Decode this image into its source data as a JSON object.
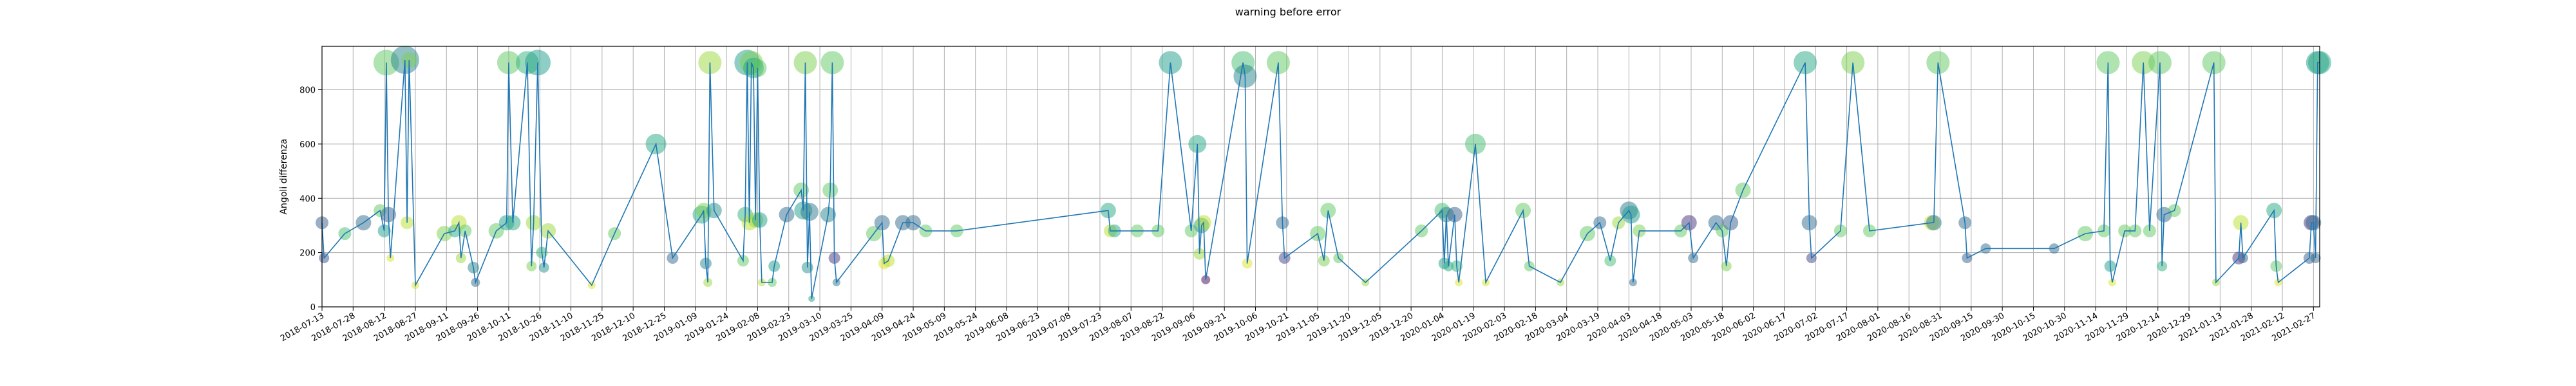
{
  "chart_data": {
    "type": "scatter",
    "title": "warning before error",
    "xlabel": "",
    "ylabel": "Angoli differenza",
    "ylim": [
      0,
      960
    ],
    "yticks": [
      0,
      200,
      400,
      600,
      800
    ],
    "xlim": [
      "2018-07-13",
      "2021-03-02"
    ],
    "xticks": [
      "2018-07-13",
      "2018-07-28",
      "2018-08-12",
      "2018-08-27",
      "2018-09-11",
      "2018-09-26",
      "2018-10-11",
      "2018-10-26",
      "2018-11-10",
      "2018-11-25",
      "2018-12-10",
      "2018-12-25",
      "2019-01-09",
      "2019-01-24",
      "2019-02-08",
      "2019-02-23",
      "2019-03-10",
      "2019-03-25",
      "2019-04-09",
      "2019-04-24",
      "2019-05-09",
      "2019-05-24",
      "2019-06-08",
      "2019-06-23",
      "2019-07-08",
      "2019-07-23",
      "2019-08-07",
      "2019-08-22",
      "2019-09-06",
      "2019-09-21",
      "2019-10-06",
      "2019-10-21",
      "2019-11-05",
      "2019-11-20",
      "2019-12-05",
      "2019-12-20",
      "2020-01-04",
      "2020-01-19",
      "2020-02-03",
      "2020-02-18",
      "2020-03-04",
      "2020-03-19",
      "2020-04-03",
      "2020-04-18",
      "2020-05-03",
      "2020-05-18",
      "2020-06-02",
      "2020-06-17",
      "2020-07-02",
      "2020-07-17",
      "2020-08-01",
      "2020-08-16",
      "2020-08-31",
      "2020-09-15",
      "2020-09-30",
      "2020-10-15",
      "2020-10-30",
      "2020-11-14",
      "2020-11-29",
      "2020-12-14",
      "2020-12-29",
      "2021-01-13",
      "2021-01-28",
      "2021-02-12",
      "2021-02-27"
    ],
    "grid": true,
    "line_color": "#1f77b4",
    "colormap": "viridis",
    "points": [
      {
        "x": "2018-07-13",
        "y": 310,
        "size": 10,
        "c": 0.3
      },
      {
        "x": "2018-07-14",
        "y": 180,
        "size": 8,
        "c": 0.25
      },
      {
        "x": "2018-07-24",
        "y": 270,
        "size": 10,
        "c": 0.7
      },
      {
        "x": "2018-08-02",
        "y": 310,
        "size": 12,
        "c": 0.35
      },
      {
        "x": "2018-08-10",
        "y": 355,
        "size": 10,
        "c": 0.75
      },
      {
        "x": "2018-08-12",
        "y": 280,
        "size": 10,
        "c": 0.55
      },
      {
        "x": "2018-08-13",
        "y": 900,
        "size": 20,
        "c": 0.75
      },
      {
        "x": "2018-08-14",
        "y": 340,
        "size": 12,
        "c": 0.3
      },
      {
        "x": "2018-08-15",
        "y": 180,
        "size": 6,
        "c": 0.95
      },
      {
        "x": "2018-08-22",
        "y": 910,
        "size": 22,
        "c": 0.45
      },
      {
        "x": "2018-08-23",
        "y": 310,
        "size": 10,
        "c": 0.9
      },
      {
        "x": "2018-08-24",
        "y": 910,
        "size": 12,
        "c": 0.8
      },
      {
        "x": "2018-08-27",
        "y": 80,
        "size": 6,
        "c": 0.95
      },
      {
        "x": "2018-09-10",
        "y": 270,
        "size": 12,
        "c": 0.8
      },
      {
        "x": "2018-09-15",
        "y": 280,
        "size": 10,
        "c": 0.6
      },
      {
        "x": "2018-09-17",
        "y": 310,
        "size": 12,
        "c": 0.9
      },
      {
        "x": "2018-09-18",
        "y": 180,
        "size": 8,
        "c": 0.85
      },
      {
        "x": "2018-09-20",
        "y": 280,
        "size": 10,
        "c": 0.75
      },
      {
        "x": "2018-09-24",
        "y": 145,
        "size": 9,
        "c": 0.45
      },
      {
        "x": "2018-09-25",
        "y": 90,
        "size": 7,
        "c": 0.35
      },
      {
        "x": "2018-10-05",
        "y": 280,
        "size": 12,
        "c": 0.75
      },
      {
        "x": "2018-10-10",
        "y": 310,
        "size": 12,
        "c": 0.55
      },
      {
        "x": "2018-10-11",
        "y": 900,
        "size": 18,
        "c": 0.75
      },
      {
        "x": "2018-10-13",
        "y": 310,
        "size": 12,
        "c": 0.6
      },
      {
        "x": "2018-10-20",
        "y": 900,
        "size": 18,
        "c": 0.65
      },
      {
        "x": "2018-10-22",
        "y": 150,
        "size": 8,
        "c": 0.8
      },
      {
        "x": "2018-10-23",
        "y": 310,
        "size": 12,
        "c": 0.85
      },
      {
        "x": "2018-10-25",
        "y": 900,
        "size": 20,
        "c": 0.55
      },
      {
        "x": "2018-10-27",
        "y": 200,
        "size": 9,
        "c": 0.65
      },
      {
        "x": "2018-10-28",
        "y": 145,
        "size": 8,
        "c": 0.5
      },
      {
        "x": "2018-10-30",
        "y": 280,
        "size": 12,
        "c": 0.85
      },
      {
        "x": "2018-11-20",
        "y": 80,
        "size": 6,
        "c": 0.95
      },
      {
        "x": "2018-12-01",
        "y": 270,
        "size": 10,
        "c": 0.75
      },
      {
        "x": "2018-12-21",
        "y": 600,
        "size": 16,
        "c": 0.6
      },
      {
        "x": "2018-12-29",
        "y": 180,
        "size": 9,
        "c": 0.35
      },
      {
        "x": "2019-01-12",
        "y": 340,
        "size": 14,
        "c": 0.6
      },
      {
        "x": "2019-01-13",
        "y": 355,
        "size": 12,
        "c": 0.8
      },
      {
        "x": "2019-01-14",
        "y": 160,
        "size": 9,
        "c": 0.45
      },
      {
        "x": "2019-01-15",
        "y": 90,
        "size": 7,
        "c": 0.85
      },
      {
        "x": "2019-01-16",
        "y": 900,
        "size": 18,
        "c": 0.85
      },
      {
        "x": "2019-01-18",
        "y": 355,
        "size": 12,
        "c": 0.5
      },
      {
        "x": "2019-02-01",
        "y": 170,
        "size": 9,
        "c": 0.75
      },
      {
        "x": "2019-02-02",
        "y": 340,
        "size": 12,
        "c": 0.65
      },
      {
        "x": "2019-02-03",
        "y": 900,
        "size": 20,
        "c": 0.55
      },
      {
        "x": "2019-02-04",
        "y": 310,
        "size": 12,
        "c": 0.9
      },
      {
        "x": "2019-02-05",
        "y": 900,
        "size": 18,
        "c": 0.8
      },
      {
        "x": "2019-02-06",
        "y": 880,
        "size": 16,
        "c": 0.6
      },
      {
        "x": "2019-02-07",
        "y": 320,
        "size": 12,
        "c": 0.85
      },
      {
        "x": "2019-02-08",
        "y": 880,
        "size": 14,
        "c": 0.75
      },
      {
        "x": "2019-02-09",
        "y": 320,
        "size": 12,
        "c": 0.55
      },
      {
        "x": "2019-02-10",
        "y": 90,
        "size": 6,
        "c": 0.9
      },
      {
        "x": "2019-02-15",
        "y": 90,
        "size": 7,
        "c": 0.75
      },
      {
        "x": "2019-02-16",
        "y": 150,
        "size": 9,
        "c": 0.55
      },
      {
        "x": "2019-02-22",
        "y": 340,
        "size": 12,
        "c": 0.35
      },
      {
        "x": "2019-03-01",
        "y": 430,
        "size": 12,
        "c": 0.75
      },
      {
        "x": "2019-03-02",
        "y": 355,
        "size": 14,
        "c": 0.55
      },
      {
        "x": "2019-03-03",
        "y": 900,
        "size": 18,
        "c": 0.8
      },
      {
        "x": "2019-03-04",
        "y": 145,
        "size": 9,
        "c": 0.5
      },
      {
        "x": "2019-03-05",
        "y": 350,
        "size": 14,
        "c": 0.4
      },
      {
        "x": "2019-03-06",
        "y": 30,
        "size": 5,
        "c": 0.55
      },
      {
        "x": "2019-03-14",
        "y": 340,
        "size": 12,
        "c": 0.45
      },
      {
        "x": "2019-03-15",
        "y": 430,
        "size": 12,
        "c": 0.75
      },
      {
        "x": "2019-03-16",
        "y": 900,
        "size": 18,
        "c": 0.75
      },
      {
        "x": "2019-03-17",
        "y": 180,
        "size": 9,
        "c": 0.15
      },
      {
        "x": "2019-03-18",
        "y": 90,
        "size": 6,
        "c": 0.4
      },
      {
        "x": "2019-04-05",
        "y": 270,
        "size": 12,
        "c": 0.75
      },
      {
        "x": "2019-04-09",
        "y": 310,
        "size": 12,
        "c": 0.35
      },
      {
        "x": "2019-04-10",
        "y": 160,
        "size": 9,
        "c": 0.95
      },
      {
        "x": "2019-04-12",
        "y": 170,
        "size": 10,
        "c": 0.9
      },
      {
        "x": "2019-04-19",
        "y": 310,
        "size": 12,
        "c": 0.35
      },
      {
        "x": "2019-04-24",
        "y": 310,
        "size": 12,
        "c": 0.35
      },
      {
        "x": "2019-04-30",
        "y": 280,
        "size": 10,
        "c": 0.75
      },
      {
        "x": "2019-05-15",
        "y": 280,
        "size": 10,
        "c": 0.75
      },
      {
        "x": "2019-07-27",
        "y": 355,
        "size": 12,
        "c": 0.6
      },
      {
        "x": "2019-07-28",
        "y": 280,
        "size": 10,
        "c": 0.9
      },
      {
        "x": "2019-07-30",
        "y": 280,
        "size": 10,
        "c": 0.6
      },
      {
        "x": "2019-08-10",
        "y": 280,
        "size": 10,
        "c": 0.75
      },
      {
        "x": "2019-08-20",
        "y": 280,
        "size": 10,
        "c": 0.75
      },
      {
        "x": "2019-08-26",
        "y": 900,
        "size": 18,
        "c": 0.55
      },
      {
        "x": "2019-09-05",
        "y": 280,
        "size": 10,
        "c": 0.75
      },
      {
        "x": "2019-09-08",
        "y": 600,
        "size": 14,
        "c": 0.6
      },
      {
        "x": "2019-09-09",
        "y": 195,
        "size": 9,
        "c": 0.85
      },
      {
        "x": "2019-09-10",
        "y": 300,
        "size": 12,
        "c": 0.55
      },
      {
        "x": "2019-09-11",
        "y": 310,
        "size": 12,
        "c": 0.9
      },
      {
        "x": "2019-09-12",
        "y": 100,
        "size": 7,
        "c": 0.0
      },
      {
        "x": "2019-09-30",
        "y": 900,
        "size": 18,
        "c": 0.7
      },
      {
        "x": "2019-10-01",
        "y": 850,
        "size": 18,
        "c": 0.45
      },
      {
        "x": "2019-10-02",
        "y": 160,
        "size": 8,
        "c": 0.95
      },
      {
        "x": "2019-10-17",
        "y": 900,
        "size": 18,
        "c": 0.75
      },
      {
        "x": "2019-10-19",
        "y": 310,
        "size": 10,
        "c": 0.35
      },
      {
        "x": "2019-10-20",
        "y": 180,
        "size": 9,
        "c": 0.2
      },
      {
        "x": "2019-11-05",
        "y": 270,
        "size": 12,
        "c": 0.75
      },
      {
        "x": "2019-11-08",
        "y": 170,
        "size": 9,
        "c": 0.8
      },
      {
        "x": "2019-11-10",
        "y": 355,
        "size": 12,
        "c": 0.75
      },
      {
        "x": "2019-11-15",
        "y": 180,
        "size": 8,
        "c": 0.75
      },
      {
        "x": "2019-11-28",
        "y": 90,
        "size": 6,
        "c": 0.85
      },
      {
        "x": "2019-12-25",
        "y": 280,
        "size": 10,
        "c": 0.75
      },
      {
        "x": "2020-01-04",
        "y": 355,
        "size": 12,
        "c": 0.7
      },
      {
        "x": "2020-01-05",
        "y": 160,
        "size": 9,
        "c": 0.55
      },
      {
        "x": "2020-01-06",
        "y": 340,
        "size": 12,
        "c": 0.45
      },
      {
        "x": "2020-01-07",
        "y": 150,
        "size": 8,
        "c": 0.6
      },
      {
        "x": "2020-01-10",
        "y": 340,
        "size": 12,
        "c": 0.3
      },
      {
        "x": "2020-01-11",
        "y": 150,
        "size": 9,
        "c": 0.65
      },
      {
        "x": "2020-01-12",
        "y": 90,
        "size": 6,
        "c": 0.95
      },
      {
        "x": "2020-01-20",
        "y": 600,
        "size": 16,
        "c": 0.7
      },
      {
        "x": "2020-01-25",
        "y": 90,
        "size": 6,
        "c": 0.95
      },
      {
        "x": "2020-02-12",
        "y": 355,
        "size": 12,
        "c": 0.75
      },
      {
        "x": "2020-02-15",
        "y": 150,
        "size": 8,
        "c": 0.75
      },
      {
        "x": "2020-03-01",
        "y": 90,
        "size": 6,
        "c": 0.85
      },
      {
        "x": "2020-03-14",
        "y": 270,
        "size": 12,
        "c": 0.75
      },
      {
        "x": "2020-03-20",
        "y": 310,
        "size": 10,
        "c": 0.35
      },
      {
        "x": "2020-03-25",
        "y": 170,
        "size": 9,
        "c": 0.7
      },
      {
        "x": "2020-03-29",
        "y": 310,
        "size": 10,
        "c": 0.85
      },
      {
        "x": "2020-04-03",
        "y": 355,
        "size": 14,
        "c": 0.4
      },
      {
        "x": "2020-04-04",
        "y": 340,
        "size": 14,
        "c": 0.55
      },
      {
        "x": "2020-04-05",
        "y": 90,
        "size": 6,
        "c": 0.35
      },
      {
        "x": "2020-04-08",
        "y": 280,
        "size": 10,
        "c": 0.8
      },
      {
        "x": "2020-04-28",
        "y": 280,
        "size": 10,
        "c": 0.75
      },
      {
        "x": "2020-05-02",
        "y": 310,
        "size": 12,
        "c": 0.15
      },
      {
        "x": "2020-05-04",
        "y": 180,
        "size": 8,
        "c": 0.35
      },
      {
        "x": "2020-05-15",
        "y": 310,
        "size": 12,
        "c": 0.35
      },
      {
        "x": "2020-05-18",
        "y": 280,
        "size": 10,
        "c": 0.75
      },
      {
        "x": "2020-05-20",
        "y": 150,
        "size": 8,
        "c": 0.8
      },
      {
        "x": "2020-05-22",
        "y": 310,
        "size": 12,
        "c": 0.3
      },
      {
        "x": "2020-05-28",
        "y": 430,
        "size": 12,
        "c": 0.75
      },
      {
        "x": "2020-06-27",
        "y": 900,
        "size": 18,
        "c": 0.6
      },
      {
        "x": "2020-06-29",
        "y": 310,
        "size": 12,
        "c": 0.35
      },
      {
        "x": "2020-06-30",
        "y": 180,
        "size": 8,
        "c": 0.2
      },
      {
        "x": "2020-07-14",
        "y": 280,
        "size": 10,
        "c": 0.75
      },
      {
        "x": "2020-07-20",
        "y": 900,
        "size": 18,
        "c": 0.8
      },
      {
        "x": "2020-07-28",
        "y": 280,
        "size": 10,
        "c": 0.75
      },
      {
        "x": "2020-08-27",
        "y": 310,
        "size": 12,
        "c": 0.9
      },
      {
        "x": "2020-08-28",
        "y": 310,
        "size": 12,
        "c": 0.4
      },
      {
        "x": "2020-08-30",
        "y": 900,
        "size": 18,
        "c": 0.75
      },
      {
        "x": "2020-09-12",
        "y": 310,
        "size": 10,
        "c": 0.35
      },
      {
        "x": "2020-09-13",
        "y": 180,
        "size": 8,
        "c": 0.3
      },
      {
        "x": "2020-09-22",
        "y": 215,
        "size": 8,
        "c": 0.35
      },
      {
        "x": "2020-10-25",
        "y": 215,
        "size": 8,
        "c": 0.35
      },
      {
        "x": "2020-11-09",
        "y": 270,
        "size": 12,
        "c": 0.75
      },
      {
        "x": "2020-11-18",
        "y": 280,
        "size": 10,
        "c": 0.75
      },
      {
        "x": "2020-11-20",
        "y": 900,
        "size": 18,
        "c": 0.75
      },
      {
        "x": "2020-11-21",
        "y": 150,
        "size": 9,
        "c": 0.55
      },
      {
        "x": "2020-11-22",
        "y": 90,
        "size": 6,
        "c": 0.95
      },
      {
        "x": "2020-11-28",
        "y": 280,
        "size": 10,
        "c": 0.75
      },
      {
        "x": "2020-12-03",
        "y": 280,
        "size": 10,
        "c": 0.75
      },
      {
        "x": "2020-12-07",
        "y": 900,
        "size": 18,
        "c": 0.8
      },
      {
        "x": "2020-12-10",
        "y": 280,
        "size": 10,
        "c": 0.75
      },
      {
        "x": "2020-12-15",
        "y": 900,
        "size": 18,
        "c": 0.75
      },
      {
        "x": "2020-12-16",
        "y": 150,
        "size": 8,
        "c": 0.65
      },
      {
        "x": "2020-12-17",
        "y": 340,
        "size": 12,
        "c": 0.35
      },
      {
        "x": "2020-12-22",
        "y": 355,
        "size": 10,
        "c": 0.75
      },
      {
        "x": "2021-01-10",
        "y": 900,
        "size": 18,
        "c": 0.75
      },
      {
        "x": "2021-01-11",
        "y": 90,
        "size": 6,
        "c": 0.85
      },
      {
        "x": "2021-01-22",
        "y": 180,
        "size": 10,
        "c": 0.15
      },
      {
        "x": "2021-01-23",
        "y": 310,
        "size": 12,
        "c": 0.9
      },
      {
        "x": "2021-01-24",
        "y": 180,
        "size": 8,
        "c": 0.3
      },
      {
        "x": "2021-02-08",
        "y": 355,
        "size": 12,
        "c": 0.6
      },
      {
        "x": "2021-02-09",
        "y": 150,
        "size": 9,
        "c": 0.75
      },
      {
        "x": "2021-02-10",
        "y": 90,
        "size": 6,
        "c": 0.95
      },
      {
        "x": "2021-02-25",
        "y": 180,
        "size": 9,
        "c": 0.3
      },
      {
        "x": "2021-02-26",
        "y": 310,
        "size": 12,
        "c": 0.15
      },
      {
        "x": "2021-02-27",
        "y": 310,
        "size": 12,
        "c": 0.35
      },
      {
        "x": "2021-02-28",
        "y": 180,
        "size": 8,
        "c": 0.35
      },
      {
        "x": "2021-03-01",
        "y": 900,
        "size": 18,
        "c": 0.55
      },
      {
        "x": "2021-03-02",
        "y": 900,
        "size": 18,
        "c": 0.6
      }
    ]
  }
}
